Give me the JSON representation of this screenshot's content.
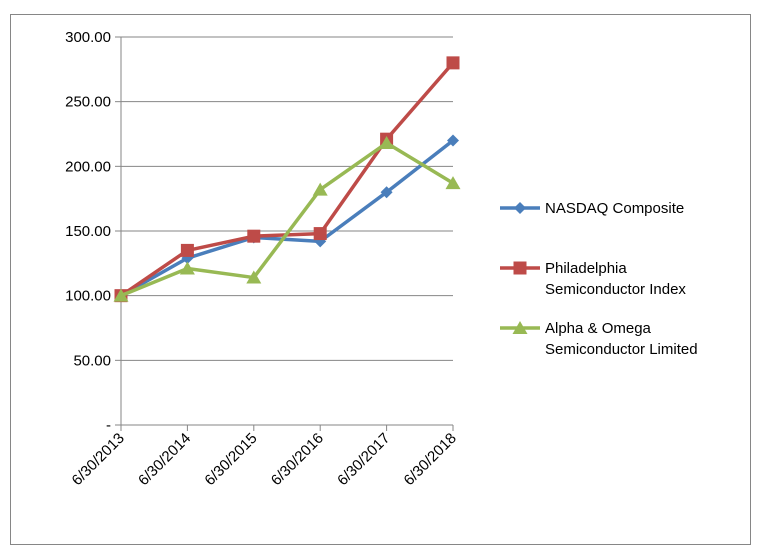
{
  "chart_data": {
    "type": "line",
    "title": "",
    "xlabel": "",
    "ylabel": "",
    "categories": [
      "6/30/2013",
      "6/30/2014",
      "6/30/2015",
      "6/30/2016",
      "6/30/2017",
      "6/30/2018"
    ],
    "ylim": [
      0,
      300
    ],
    "y_ticks": [
      "-",
      "50.00",
      "100.00",
      "150.00",
      "200.00",
      "250.00",
      "300.00"
    ],
    "y_tick_values": [
      0,
      50,
      100,
      150,
      200,
      250,
      300
    ],
    "grid": true,
    "legend_position": "right",
    "series": [
      {
        "name": "NASDAQ Composite",
        "color": "#4a7ebb",
        "marker": "diamond",
        "values": [
          100,
          129,
          145,
          142,
          180,
          220
        ]
      },
      {
        "name": "Philadelphia Semiconductor Index",
        "legend_lines": [
          "Philadelphia",
          "Semiconductor Index"
        ],
        "color": "#be4b48",
        "marker": "square",
        "values": [
          100,
          135,
          146,
          148,
          221,
          280
        ]
      },
      {
        "name": "Alpha & Omega Semiconductor Limited",
        "legend_lines": [
          "Alpha & Omega",
          "Semiconductor Limited"
        ],
        "color": "#98b954",
        "marker": "triangle",
        "values": [
          100,
          121,
          114,
          182,
          218,
          187
        ]
      }
    ]
  }
}
